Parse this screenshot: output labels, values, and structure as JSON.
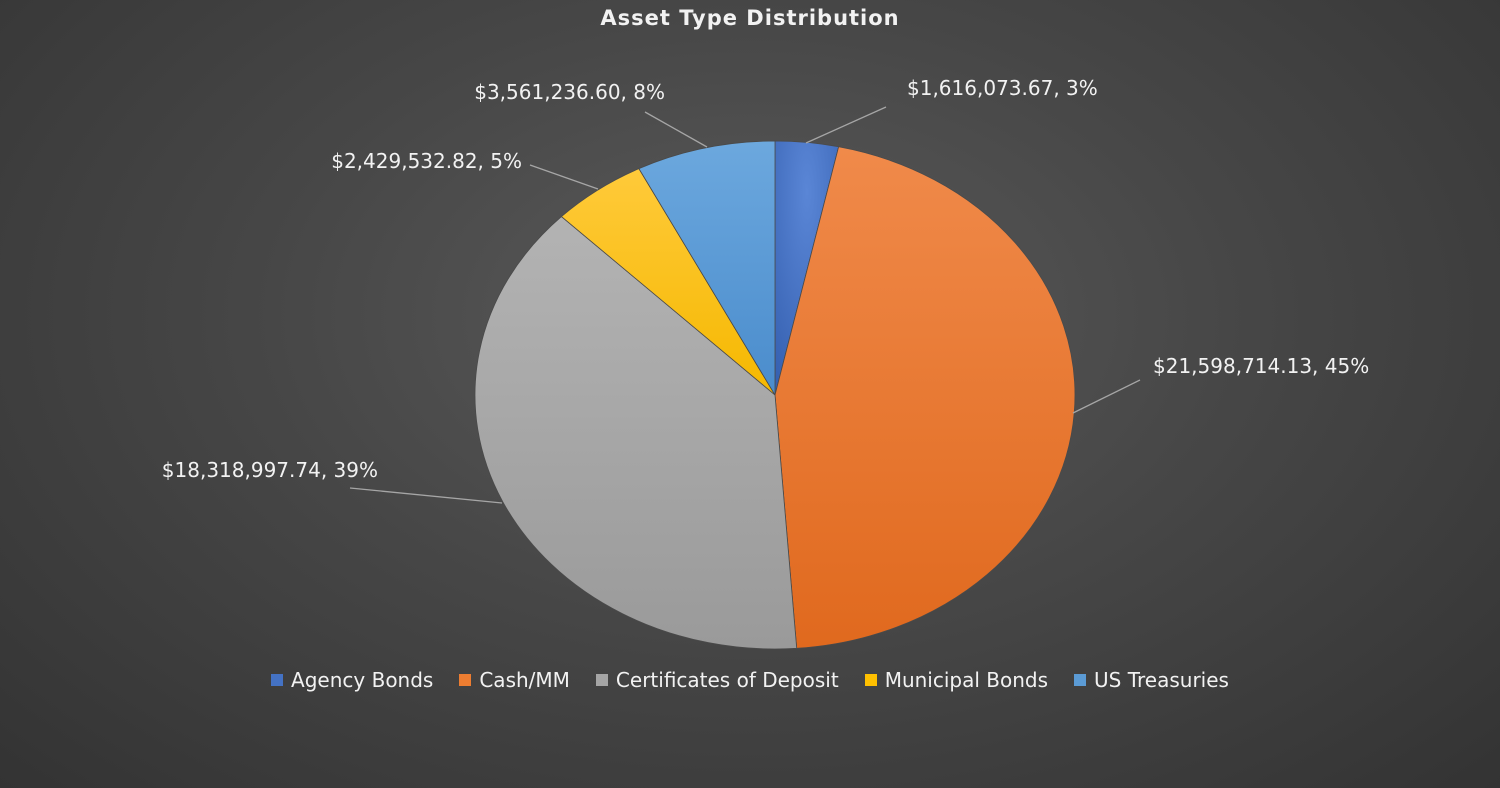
{
  "chart_data": {
    "type": "pie",
    "title": "Asset Type Distribution",
    "categories": [
      "Agency Bonds",
      "Cash/MM",
      "Certificates of Deposit",
      "Municipal Bonds",
      "US Treasuries"
    ],
    "values": [
      1616073.67,
      21598714.13,
      18318997.74,
      2429532.82,
      3561236.6
    ],
    "data_labels": [
      "$1,616,073.67, 3%",
      "$21,598,714.13, 45%",
      "$18,318,997.74, 39%",
      "$2,429,532.82, 5%",
      "$3,561,236.60, 8%"
    ],
    "colors": [
      "#4472c4",
      "#ed7d31",
      "#a5a5a5",
      "#ffc000",
      "#5b9bd5"
    ],
    "legend_position": "bottom"
  }
}
